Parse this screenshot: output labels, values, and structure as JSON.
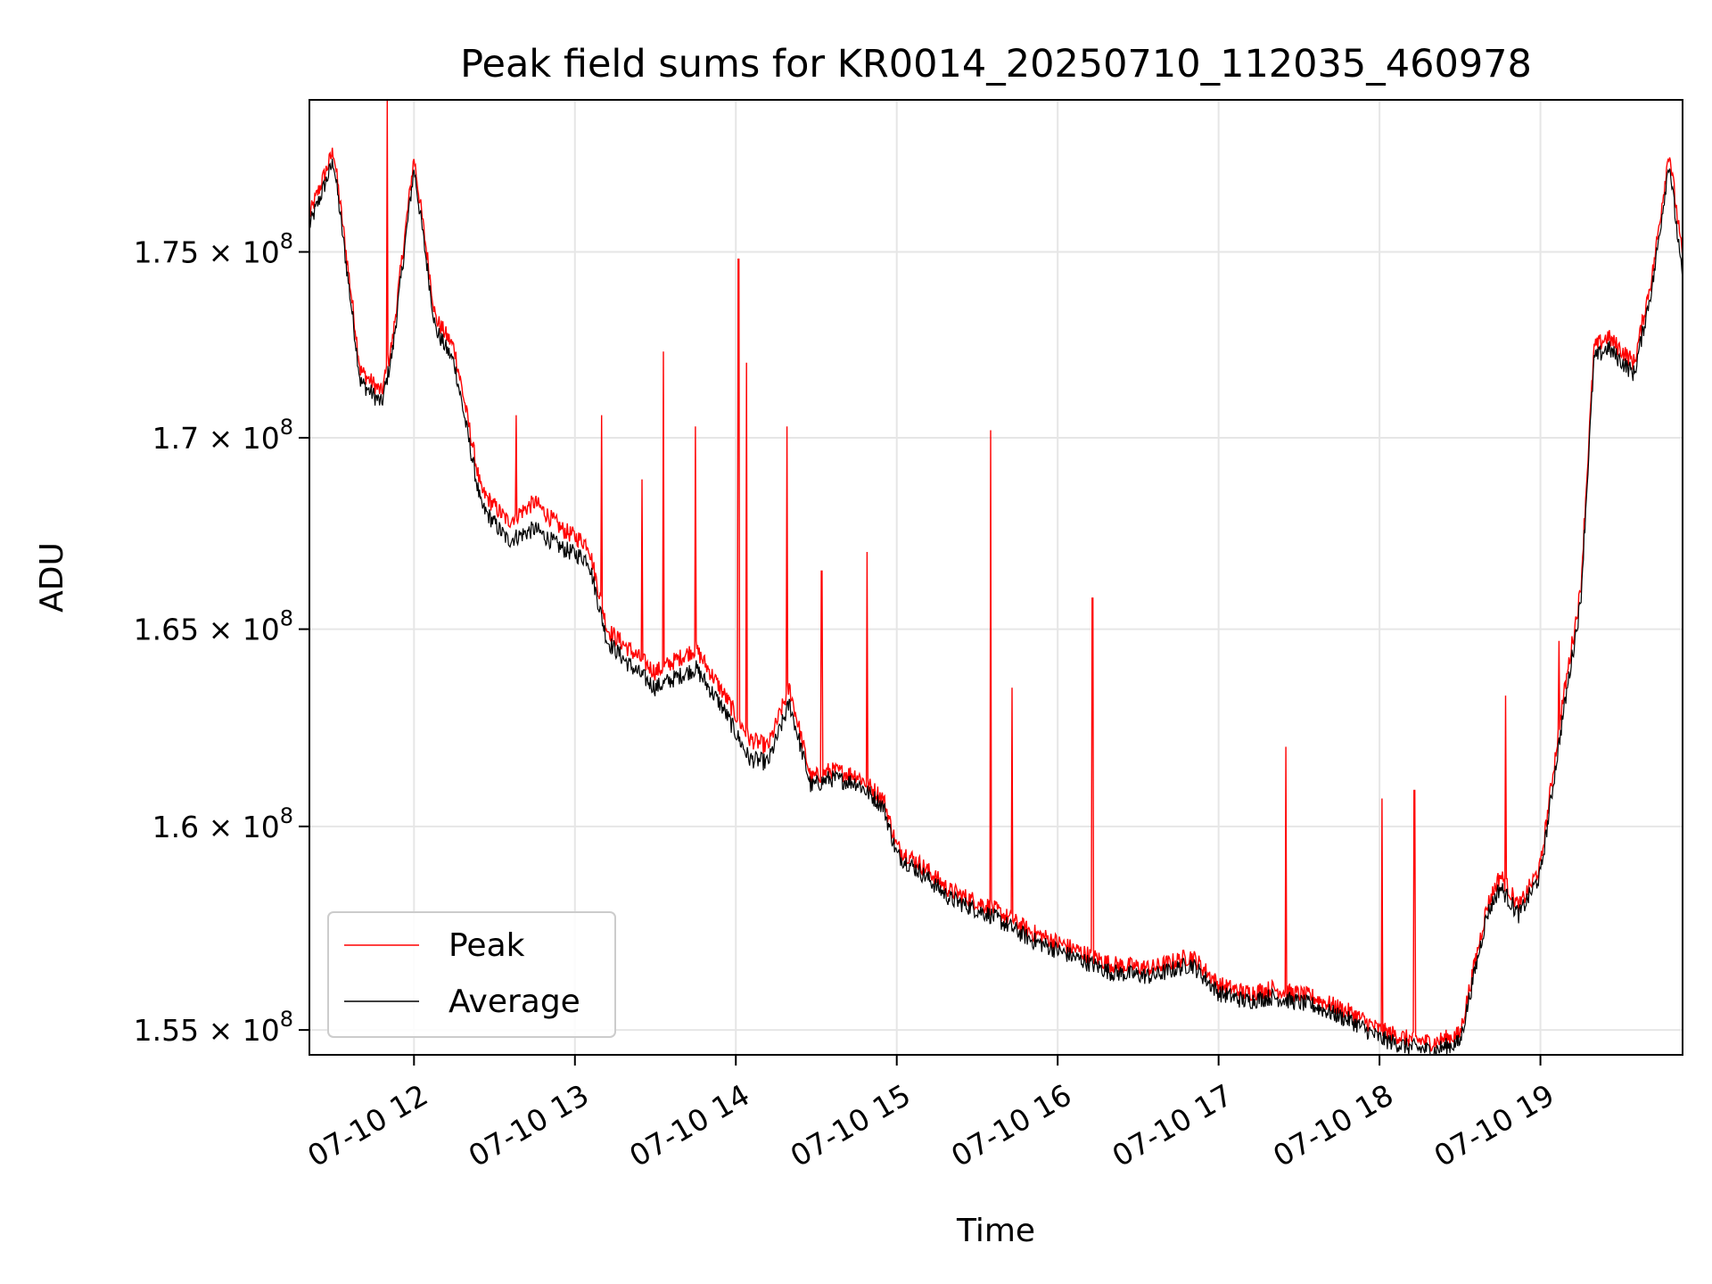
{
  "chart_data": {
    "type": "line",
    "title": "Peak field sums for KR0014_20250710_112035_460978",
    "xlabel": "Time",
    "ylabel": "ADU",
    "x_range": [
      "07-10 11:21",
      "07-10 19:53"
    ],
    "ylim": [
      154400000,
      179200000
    ],
    "y_scale": "log",
    "grid": true,
    "legend_position": "lower left",
    "x_ticks": [
      "07-10 12",
      "07-10 13",
      "07-10 14",
      "07-10 15",
      "07-10 16",
      "07-10 17",
      "07-10 18",
      "07-10 19"
    ],
    "y_ticks": [
      {
        "value": 155000000,
        "mantissa": "1.55",
        "exponent": "8"
      },
      {
        "value": 160000000,
        "mantissa": "1.6",
        "exponent": "8"
      },
      {
        "value": 165000000,
        "mantissa": "1.65",
        "exponent": "8"
      },
      {
        "value": 170000000,
        "mantissa": "1.7",
        "exponent": "8"
      },
      {
        "value": 175000000,
        "mantissa": "1.75",
        "exponent": "8"
      }
    ],
    "time_suffix": " × 10",
    "x": [
      "11:21",
      "11:30",
      "11:40",
      "11:48",
      "11:52",
      "12:00",
      "12:08",
      "12:15",
      "12:25",
      "12:35",
      "12:45",
      "12:55",
      "13:05",
      "13:12",
      "13:20",
      "13:30",
      "13:45",
      "13:55",
      "14:05",
      "14:12",
      "14:20",
      "14:28",
      "14:35",
      "14:45",
      "14:55",
      "15:00",
      "15:10",
      "15:20",
      "15:35",
      "15:50",
      "16:05",
      "16:20",
      "16:35",
      "16:50",
      "17:00",
      "17:10",
      "17:20",
      "17:35",
      "17:50",
      "18:00",
      "18:10",
      "18:20",
      "18:30",
      "18:40",
      "18:45",
      "18:52",
      "19:00",
      "19:08",
      "19:15",
      "19:20",
      "19:25",
      "19:35",
      "19:42",
      "19:48",
      "19:53"
    ],
    "series": [
      {
        "name": "Peak",
        "color": "#ff0000",
        "values": [
          176000000,
          177800000,
          171800000,
          171200000,
          172600000,
          177600000,
          173200000,
          172400000,
          168600000,
          167800000,
          168300000,
          167600000,
          167200000,
          165000000,
          164500000,
          163900000,
          164500000,
          163400000,
          162200000,
          162000000,
          163500000,
          161200000,
          161400000,
          161300000,
          160700000,
          159500000,
          159000000,
          158400000,
          158000000,
          157400000,
          157000000,
          156600000,
          156500000,
          156800000,
          156100000,
          155900000,
          156000000,
          155800000,
          155400000,
          155000000,
          154800000,
          154700000,
          154900000,
          158000000,
          158800000,
          158000000,
          159000000,
          163000000,
          166000000,
          172400000,
          172700000,
          172000000,
          174500000,
          177800000,
          174800000
        ],
        "spikes": [
          {
            "x": "11:50",
            "value": 179200000
          },
          {
            "x": "12:38",
            "value": 170600000
          },
          {
            "x": "13:10",
            "value": 170600000
          },
          {
            "x": "13:25",
            "value": 168900000
          },
          {
            "x": "13:33",
            "value": 172300000
          },
          {
            "x": "13:45",
            "value": 170300000
          },
          {
            "x": "14:01",
            "value": 174800000
          },
          {
            "x": "14:04",
            "value": 172000000
          },
          {
            "x": "14:19",
            "value": 170300000
          },
          {
            "x": "14:32",
            "value": 166500000
          },
          {
            "x": "14:49",
            "value": 167000000
          },
          {
            "x": "15:35",
            "value": 170200000
          },
          {
            "x": "15:43",
            "value": 163500000
          },
          {
            "x": "16:13",
            "value": 165800000
          },
          {
            "x": "17:25",
            "value": 162000000
          },
          {
            "x": "18:01",
            "value": 160700000
          },
          {
            "x": "18:13",
            "value": 160900000
          },
          {
            "x": "18:47",
            "value": 163300000
          },
          {
            "x": "19:07",
            "value": 164700000
          }
        ]
      },
      {
        "name": "Average",
        "color": "#000000",
        "values": [
          175700000,
          177500000,
          171500000,
          170900000,
          172300000,
          177300000,
          172900000,
          172000000,
          168200000,
          167300000,
          167600000,
          167100000,
          166800000,
          164700000,
          164100000,
          163500000,
          164000000,
          163000000,
          161700000,
          161600000,
          163100000,
          161000000,
          161200000,
          161100000,
          160500000,
          159300000,
          158800000,
          158200000,
          157800000,
          157200000,
          156800000,
          156400000,
          156300000,
          156600000,
          155900000,
          155700000,
          155800000,
          155600000,
          155200000,
          154800000,
          154600000,
          154500000,
          154700000,
          157800000,
          158500000,
          157800000,
          158800000,
          162600000,
          165700000,
          172100000,
          172400000,
          171700000,
          174200000,
          177500000,
          174200000
        ]
      }
    ]
  }
}
